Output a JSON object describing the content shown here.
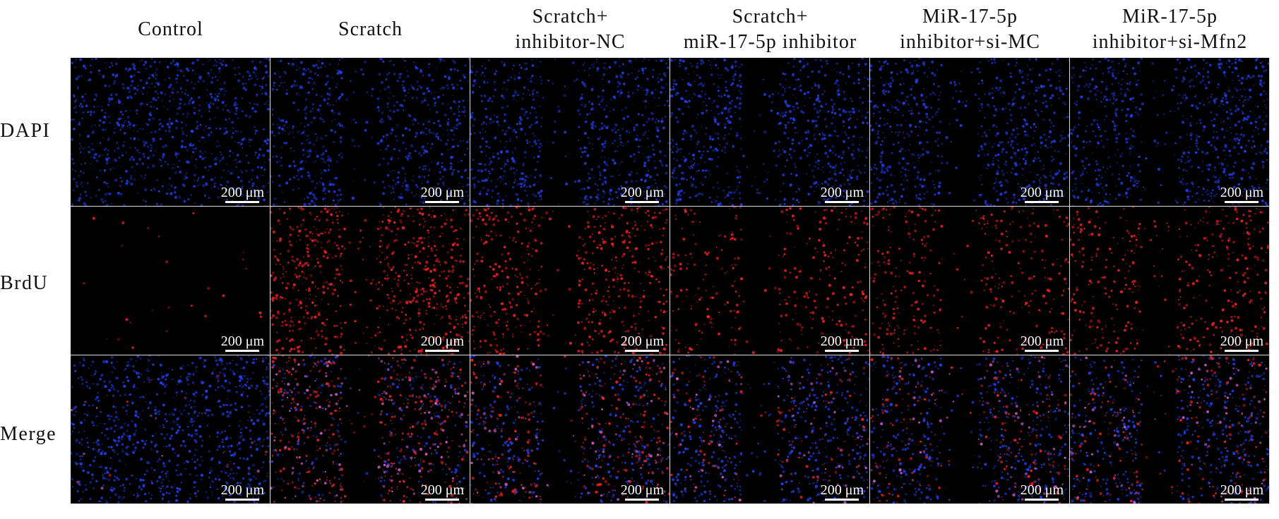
{
  "columns": [
    {
      "label": "Control",
      "gap": 0
    },
    {
      "label": "Scratch",
      "gap": 1
    },
    {
      "label": "Scratch+\ninhibitor-NC",
      "gap": 1
    },
    {
      "label": "Scratch+\nmiR-17-5p inhibitor",
      "gap": 1
    },
    {
      "label": "MiR-17-5p\ninhibitor+si-MC",
      "gap": 1
    },
    {
      "label": "MiR-17-5p\ninhibitor+si-Mfn2",
      "gap": 1
    }
  ],
  "rows": [
    {
      "label": "DAPI",
      "channel": "blue"
    },
    {
      "label": "BrdU",
      "channel": "red"
    },
    {
      "label": "Merge",
      "channel": "merge"
    }
  ],
  "brdu_intensity": [
    0.05,
    1.0,
    0.75,
    0.45,
    0.5,
    0.55
  ],
  "scale_bar": "200 μm",
  "colors": {
    "dapi": "#2244ff",
    "brdu": "#ff2222",
    "merge_pink": "#e060d0",
    "background": "#000000"
  }
}
